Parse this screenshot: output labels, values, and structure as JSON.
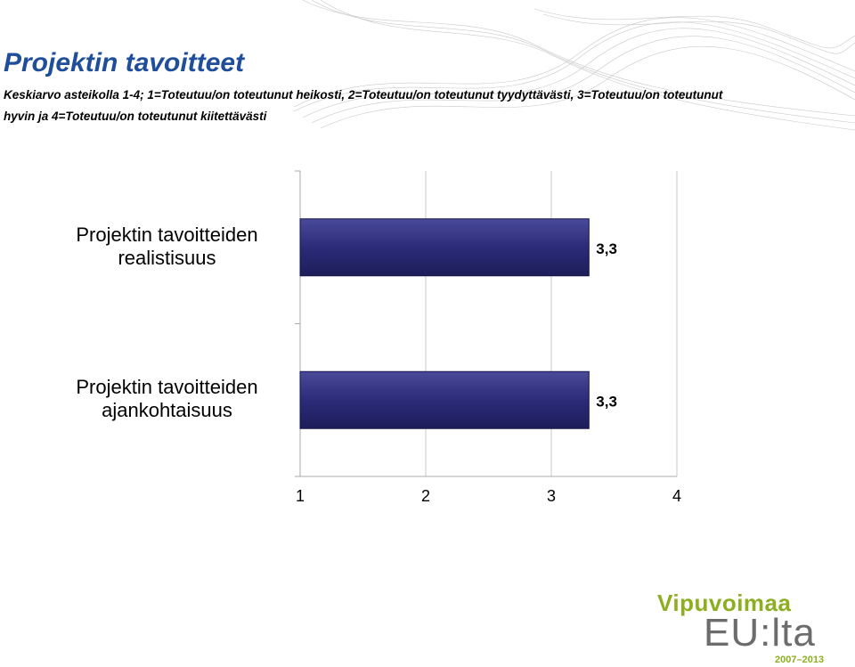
{
  "chart_data": {
    "type": "barh",
    "title": "Projektin tavoitteet",
    "subtitle": "Keskiarvo asteikolla 1-4; 1=Toteutuu/on toteutunut heikosti, 2=Toteutuu/on toteutunut tyydyttävästi, 3=Toteutuu/on toteutunut hyvin ja 4=Toteutuu/on toteutunut kiitettävästi",
    "categories": [
      "Projektin tavoitteiden realistisuus",
      "Projektin tavoitteiden ajankohtaisuus"
    ],
    "values": [
      3.3,
      3.3
    ],
    "value_labels": [
      "3,3",
      "3,3"
    ],
    "color": "#2b2b78",
    "xlim": [
      1,
      4
    ],
    "xticks": [
      1,
      2,
      3,
      4
    ],
    "grid": true
  },
  "logo": {
    "line1": "Vipuvoimaa",
    "line2": "EU:lta",
    "years": "2007–2013"
  }
}
